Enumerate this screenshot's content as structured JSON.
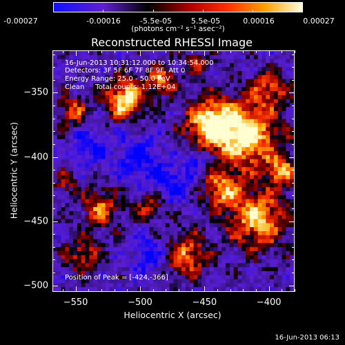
{
  "colorbar": {
    "tick_labels": [
      "-0.00027",
      "-0.00016",
      "-5.5e-05",
      "5.5e-05",
      "0.00016",
      "0.00027"
    ],
    "unit": "(photons cm⁻² s⁻¹ asec⁻²)",
    "colors": [
      "#1010ff",
      "#7010c0",
      "#000000",
      "#a00000",
      "#ff4000",
      "#ffb000",
      "#ffffe0"
    ]
  },
  "chart_data": {
    "type": "heatmap",
    "title": "Reconstructed RHESSI Image",
    "xlabel": "Heliocentric X (arcsec)",
    "ylabel": "Heliocentric Y (arcsec)",
    "xlim": [
      -568,
      -380
    ],
    "ylim": [
      -505,
      -317
    ],
    "x_ticks": [
      -550,
      -500,
      -450,
      -400
    ],
    "y_ticks": [
      -350,
      -400,
      -450,
      -500
    ],
    "x_tick_labels": [
      "−550",
      "−500",
      "−450",
      "−400"
    ],
    "y_tick_labels": [
      "−350",
      "−400",
      "−450",
      "−500"
    ],
    "annotations": [
      "16-Jun-2013 10:31:12.000 to 10:34:54.000",
      "Detectors: 3F 5F 6F 7F 8F 9F, Att 0",
      "Energy Range: 25.0 - 50.0 keV",
      "Clean     Total counts: 1.12E+04"
    ],
    "peak_label": "Position of Peak = [-424,-366]",
    "peak": [
      -424,
      -366
    ]
  },
  "timestamp": "16-Jun-2013 06:13"
}
